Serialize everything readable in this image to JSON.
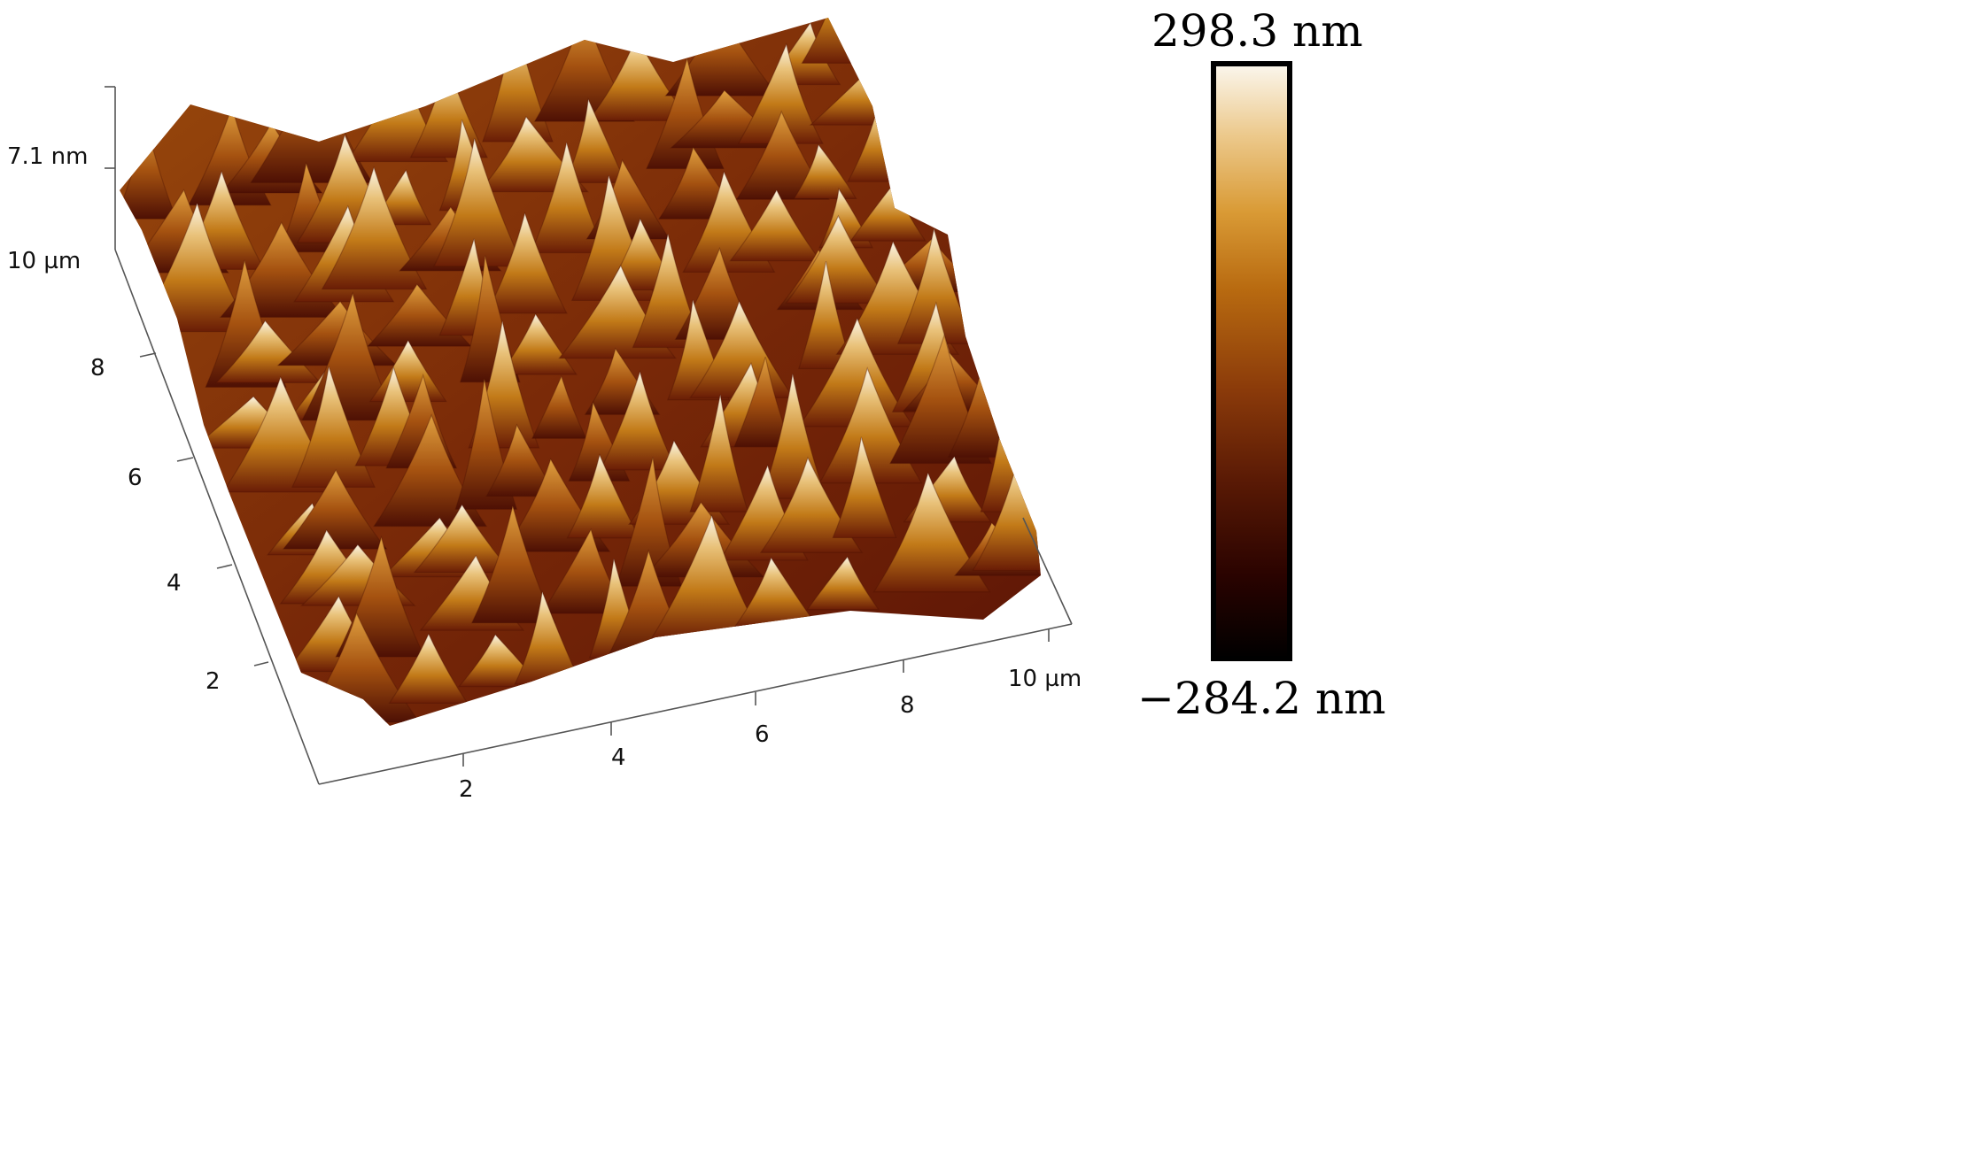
{
  "surface": {
    "z_axis": {
      "label": "7.1 nm"
    },
    "y_axis": {
      "ticks": [
        "2",
        "4",
        "6",
        "8",
        "10 µm"
      ]
    },
    "x_axis": {
      "ticks": [
        "2",
        "4",
        "6",
        "8",
        "10 µm"
      ]
    }
  },
  "colorbar": {
    "max_label": "298.3 nm",
    "min_label": "−284.2 nm",
    "gradient": [
      "#000000",
      "#2a0300",
      "#5a1a05",
      "#8a3a0a",
      "#b86a10",
      "#d99a35",
      "#ecc98c",
      "#fbf7ee"
    ]
  },
  "colors": {
    "surface_dark": "#5c1405",
    "surface_mid": "#b25a10",
    "surface_light": "#f5ead0"
  }
}
